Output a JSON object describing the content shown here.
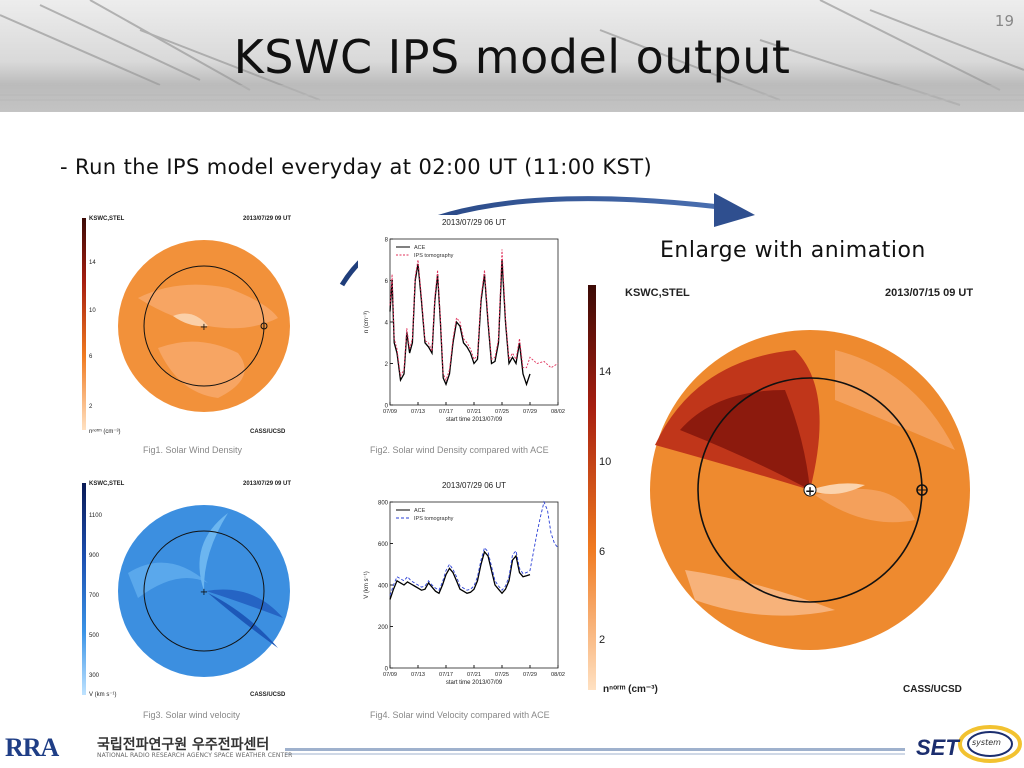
{
  "slide": {
    "title": "KSWC IPS model output",
    "page_number": "19",
    "bullet": "- Run the IPS model everyday at 02:00 UT (11:00 KST)",
    "note": "Enlarge with animation"
  },
  "fig1": {
    "label": "KSWC,STEL",
    "datetime": "2013/07/29 09 UT",
    "colorbar_ticks": [
      "14",
      "10",
      "6",
      "2"
    ],
    "unit_label": "nⁿᵒʳᵐ (cm⁻³)",
    "credit": "CASS/UCSD",
    "caption": "Fig1. Solar Wind Density"
  },
  "fig2": {
    "title": "2013/07/29 06 UT",
    "legend": [
      "ACE",
      "IPS tomography"
    ],
    "ylabel": "n (cm⁻³)",
    "xlabel": "start time 2013/07/09",
    "caption": "Fig2. Solar wind Density compared with ACE"
  },
  "fig3": {
    "label": "KSWC,STEL",
    "datetime": "2013/07/29 09 UT",
    "colorbar_ticks": [
      "1100",
      "900",
      "700",
      "500",
      "300"
    ],
    "unit_label": "V (km s⁻¹)",
    "credit": "CASS/UCSD",
    "caption": "Fig3. Solar wind velocity"
  },
  "fig4": {
    "title": "2013/07/29 06 UT",
    "legend": [
      "ACE",
      "IPS tomography"
    ],
    "ylabel": "V (km s⁻¹)",
    "xlabel": "start time 2013/07/09",
    "caption": "Fig4. Solar wind Velocity compared with ACE"
  },
  "fig_large": {
    "label": "KSWC,STEL",
    "datetime": "2013/07/15 09 UT",
    "colorbar_ticks": [
      "14",
      "10",
      "6",
      "2"
    ],
    "unit_label": "nⁿᵒʳᵐ (cm⁻³)",
    "credit": "CASS/UCSD"
  },
  "footer": {
    "logo_text": "RRA",
    "org_korean": "국립전파연구원 우주전파센터",
    "org_english": "NATIONAL RADIO RESEARCH AGENCY SPACE WEATHER CENTER",
    "right_logo": "SET",
    "right_logo_small": "system"
  },
  "chart_data": [
    {
      "type": "line",
      "title": "2013/07/29 06 UT",
      "x_tick_labels": [
        "07/09",
        "07/13",
        "07/17",
        "07/21",
        "07/25",
        "07/29",
        "08/02"
      ],
      "xlabel": "start time 2013/07/09",
      "ylabel": "n (cm⁻³)",
      "ylim": [
        0,
        8
      ],
      "y_ticks": [
        0,
        2,
        4,
        6,
        8
      ],
      "xlim": [
        0,
        24
      ],
      "series": [
        {
          "name": "ACE",
          "color": "#000000",
          "x": [
            0,
            0.3,
            0.6,
            1,
            1.5,
            2,
            2.4,
            2.8,
            3.2,
            3.6,
            4,
            4.5,
            5,
            5.5,
            6,
            6.4,
            6.8,
            7.2,
            7.6,
            8,
            8.5,
            9,
            9.5,
            10,
            10.5,
            11,
            11.5,
            12,
            12.5,
            13,
            13.5,
            14,
            14.5,
            15,
            15.5,
            16,
            16.5,
            17,
            17.5,
            18,
            18.5,
            19,
            19.5,
            20
          ],
          "y": [
            4.5,
            6,
            3,
            2.5,
            1.2,
            1.5,
            3.5,
            2.5,
            3,
            6,
            6.8,
            5,
            3,
            2.8,
            2.5,
            5,
            6.3,
            4,
            1.3,
            1,
            1.5,
            3,
            4,
            3.8,
            3,
            2.8,
            2.5,
            2,
            2.2,
            5,
            6.3,
            4,
            2,
            2.1,
            3,
            7,
            4,
            2,
            2.3,
            2,
            3,
            1.5,
            1,
            1.5
          ]
        },
        {
          "name": "IPS tomography",
          "color": "#e0305a",
          "x": [
            0,
            0.3,
            0.6,
            1,
            1.5,
            2,
            2.4,
            2.8,
            3.2,
            3.6,
            4,
            4.5,
            5,
            5.5,
            6,
            6.4,
            6.8,
            7.2,
            7.6,
            8,
            8.5,
            9,
            9.5,
            10,
            10.5,
            11,
            11.5,
            12,
            12.5,
            13,
            13.5,
            14,
            14.5,
            15,
            15.5,
            16,
            16.5,
            17,
            17.5,
            18,
            18.5,
            19,
            19.5,
            20,
            21,
            22,
            23,
            24
          ],
          "y": [
            4.8,
            6.3,
            3.2,
            2.7,
            1.4,
            1.7,
            3.7,
            2.7,
            3.2,
            6.2,
            7,
            5.2,
            3.1,
            3,
            2.6,
            5.2,
            6.5,
            4.2,
            1.5,
            1.2,
            1.7,
            3.2,
            4.2,
            4,
            3.2,
            3,
            2.7,
            2.2,
            2.4,
            5.2,
            6.5,
            4.2,
            2.2,
            2.3,
            3.2,
            7.5,
            4.2,
            2.2,
            2.5,
            2.2,
            3.2,
            1.8,
            1.8,
            2.3,
            2,
            2.1,
            1.8,
            2
          ]
        }
      ]
    },
    {
      "type": "line",
      "title": "2013/07/29 06 UT",
      "x_tick_labels": [
        "07/09",
        "07/13",
        "07/17",
        "07/21",
        "07/25",
        "07/29",
        "08/02"
      ],
      "xlabel": "start time 2013/07/09",
      "ylabel": "V (km s⁻¹)",
      "ylim": [
        0,
        800
      ],
      "y_ticks": [
        0,
        200,
        400,
        600,
        800
      ],
      "xlim": [
        0,
        24
      ],
      "series": [
        {
          "name": "ACE",
          "color": "#000000",
          "x": [
            0,
            0.5,
            1,
            1.5,
            2,
            2.5,
            3,
            3.5,
            4,
            4.5,
            5,
            5.5,
            6,
            6.5,
            7,
            7.5,
            8,
            8.5,
            9,
            9.5,
            10,
            10.5,
            11,
            11.5,
            12,
            12.5,
            13,
            13.5,
            14,
            14.5,
            15,
            15.5,
            16,
            16.5,
            17,
            17.5,
            18,
            18.5,
            19,
            19.5,
            20
          ],
          "y": [
            330,
            380,
            420,
            410,
            400,
            415,
            405,
            395,
            385,
            375,
            380,
            410,
            390,
            370,
            360,
            400,
            450,
            480,
            460,
            420,
            380,
            370,
            360,
            365,
            380,
            420,
            500,
            560,
            540,
            470,
            400,
            380,
            360,
            380,
            420,
            520,
            540,
            460,
            440,
            445,
            450
          ]
        },
        {
          "name": "IPS tomography",
          "color": "#2a3fd6",
          "x": [
            0,
            0.5,
            1,
            1.5,
            2,
            2.5,
            3,
            3.5,
            4,
            4.5,
            5,
            5.5,
            6,
            6.5,
            7,
            7.5,
            8,
            8.5,
            9,
            9.5,
            10,
            10.5,
            11,
            11.5,
            12,
            12.5,
            13,
            13.5,
            14,
            14.5,
            15,
            15.5,
            16,
            16.5,
            17,
            17.5,
            18,
            18.5,
            19,
            19.5,
            20,
            20.5,
            21,
            21.5,
            22,
            22.5,
            23,
            23.5,
            24
          ],
          "y": [
            350,
            400,
            440,
            430,
            420,
            440,
            420,
            410,
            400,
            390,
            395,
            420,
            400,
            385,
            375,
            415,
            470,
            500,
            475,
            440,
            395,
            385,
            375,
            380,
            395,
            440,
            520,
            580,
            560,
            490,
            420,
            395,
            375,
            395,
            440,
            545,
            565,
            480,
            455,
            460,
            470,
            560,
            650,
            730,
            800,
            760,
            650,
            600,
            580
          ]
        }
      ]
    }
  ]
}
